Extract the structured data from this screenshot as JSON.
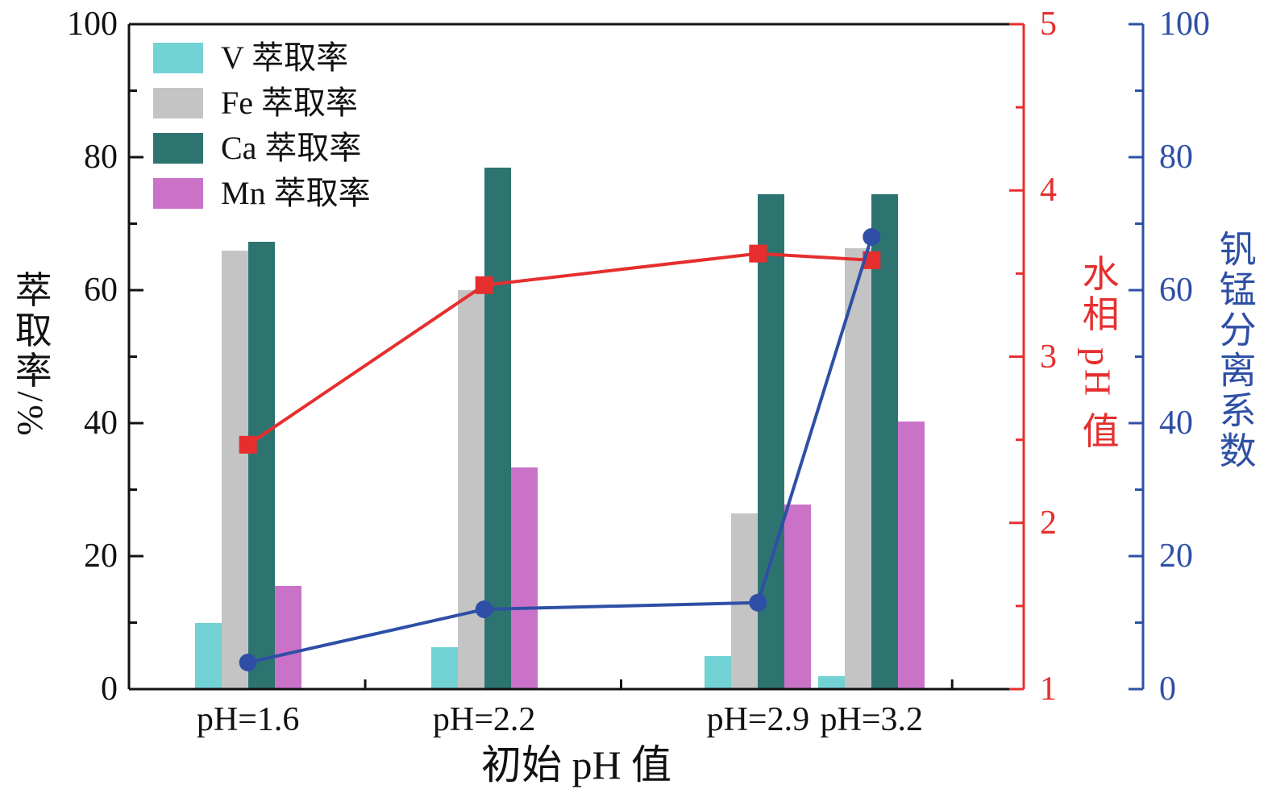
{
  "chart_data": {
    "type": "bar",
    "subtype": "grouped-bars-with-two-overlay-lines",
    "categories": [
      "pH=1.6",
      "pH=2.2",
      "pH=2.9",
      "pH=3.2"
    ],
    "bar_series": [
      {
        "name": "V 萃取率",
        "color": "#72d2d4",
        "values": [
          10,
          6.3,
          5,
          2
        ]
      },
      {
        "name": "Fe 萃取率",
        "color": "#c4c4c4",
        "values": [
          66,
          60,
          26.4,
          66.3
        ]
      },
      {
        "name": "Ca 萃取率",
        "color": "#2d7471",
        "values": [
          67.3,
          78.4,
          74.4,
          74.4
        ]
      },
      {
        "name": "Mn 萃取率",
        "color": "#ca72c8",
        "values": [
          15.5,
          33.3,
          27.8,
          40.3
        ]
      }
    ],
    "line_series": [
      {
        "name": "水相 pH 值",
        "axis": "ph",
        "marker": "square",
        "color": "#e62e2e",
        "values": [
          2.47,
          3.43,
          3.62,
          3.58
        ]
      },
      {
        "name": "钒锰分离系数",
        "axis": "sep",
        "marker": "circle",
        "color": "#2e4fa5",
        "values": [
          4,
          12,
          13,
          68
        ]
      }
    ],
    "axes": {
      "left": {
        "title": "萃取率/%",
        "min": 0,
        "max": 100,
        "ticks": [
          0,
          20,
          40,
          60,
          80,
          100
        ],
        "minor_ticks": [
          10,
          30,
          50,
          70,
          90
        ],
        "color": "#111111"
      },
      "right_ph": {
        "title": "水相 pH 值",
        "min": 1,
        "max": 5,
        "ticks": [
          1,
          2,
          3,
          4,
          5
        ],
        "minor_ticks": [
          1.5,
          2.5,
          3.5,
          4.5
        ],
        "color": "#e62e2e"
      },
      "right_sep": {
        "title": "钒锰分离系数",
        "min": 0,
        "max": 100,
        "ticks": [
          0,
          20,
          40,
          60,
          80,
          100
        ],
        "minor_ticks": [
          10,
          30,
          50,
          70,
          90
        ],
        "color": "#2e4fa5"
      },
      "x": {
        "title": "初始 pH 值"
      }
    },
    "legend": {
      "position": "top-left-inside",
      "entries": [
        "V 萃取率",
        "Fe 萃取率",
        "Ca 萃取率",
        "Mn 萃取率"
      ]
    },
    "grid": false
  }
}
